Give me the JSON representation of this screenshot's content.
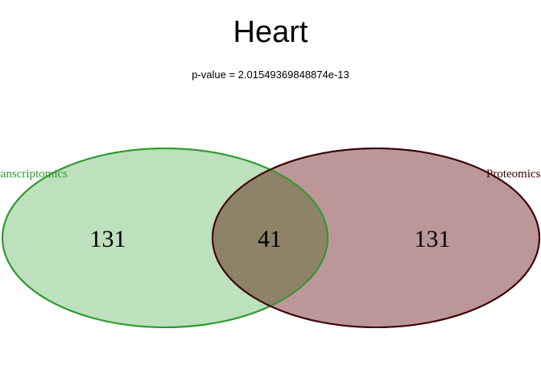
{
  "chart_data": {
    "type": "venn",
    "title": "Heart",
    "subtitle": "p-value =  2.01549369848874e-13",
    "sets": [
      {
        "name": "Transcriptomics",
        "color": "#2e9a2e",
        "fill": "#7bc17b"
      },
      {
        "name": "Proteomics",
        "color": "#3d0000",
        "fill": "#7a2f35"
      }
    ],
    "regions": {
      "only_a": "131",
      "intersection": "41",
      "only_b": "131"
    },
    "overlap_color": "#8e8268"
  }
}
